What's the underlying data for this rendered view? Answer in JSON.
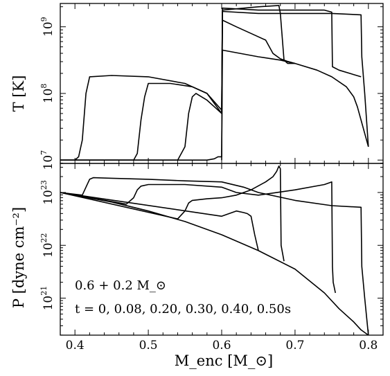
{
  "chart_data": [
    {
      "type": "line",
      "panel": "top",
      "ylabel": "T [K]",
      "xlabel": "",
      "yscale": "log",
      "xlim": [
        0.38,
        0.82
      ],
      "ylim_log10": [
        6.95,
        9.35
      ],
      "yticks": [
        {
          "base": "10",
          "exp": "7",
          "value": 7
        },
        {
          "base": "10",
          "exp": "8",
          "value": 8
        },
        {
          "base": "10",
          "exp": "9",
          "value": 9
        }
      ],
      "grid": false,
      "series": [
        {
          "x": [
            0.38,
            0.4,
            0.45,
            0.5,
            0.55,
            0.58,
            0.59,
            0.595,
            0.6,
            0.601,
            0.65,
            0.68,
            0.7,
            0.73,
            0.75,
            0.77,
            0.78,
            0.785,
            0.79,
            0.795,
            0.8
          ],
          "y": [
            7.0,
            7.0,
            7.0,
            7.0,
            7.0,
            7.0,
            7.02,
            7.05,
            7.05,
            8.65,
            8.55,
            8.5,
            8.45,
            8.35,
            8.25,
            8.1,
            7.95,
            7.8,
            7.6,
            7.4,
            7.2
          ]
        },
        {
          "x": [
            0.38,
            0.4,
            0.405,
            0.41,
            0.415,
            0.42,
            0.45,
            0.5,
            0.55,
            0.58,
            0.6,
            0.601,
            0.65,
            0.7,
            0.75,
            0.79,
            0.791,
            0.795,
            0.8
          ],
          "y": [
            7.0,
            7.0,
            7.05,
            7.3,
            8.0,
            8.25,
            8.27,
            8.25,
            8.15,
            8.0,
            7.7,
            9.23,
            9.2,
            9.2,
            9.2,
            9.18,
            8.55,
            8.0,
            7.2
          ]
        },
        {
          "x": [
            0.38,
            0.48,
            0.485,
            0.49,
            0.495,
            0.5,
            0.53,
            0.56,
            0.58,
            0.6,
            0.601,
            0.65,
            0.7,
            0.74,
            0.75,
            0.751,
            0.76,
            0.79
          ],
          "y": [
            7.0,
            7.0,
            7.1,
            7.6,
            7.95,
            8.15,
            8.15,
            8.1,
            8.0,
            7.75,
            9.28,
            9.25,
            9.25,
            9.25,
            9.22,
            8.4,
            8.35,
            8.25
          ]
        },
        {
          "x": [
            0.38,
            0.54,
            0.55,
            0.555,
            0.56,
            0.565,
            0.58,
            0.59,
            0.6,
            0.601,
            0.65,
            0.678,
            0.68,
            0.685,
            0.69,
            0.7
          ],
          "y": [
            7.0,
            7.0,
            7.2,
            7.7,
            7.95,
            8.0,
            7.9,
            7.8,
            7.7,
            9.25,
            9.3,
            9.32,
            9.2,
            8.5,
            8.45,
            8.45
          ]
        },
        {
          "x": [
            0.6,
            0.601,
            0.62,
            0.64,
            0.66,
            0.67,
            0.68,
            0.685,
            0.69,
            0.7
          ],
          "y": [
            7.0,
            9.1,
            9.0,
            8.9,
            8.8,
            8.6,
            8.52,
            8.5,
            8.48,
            8.45
          ]
        }
      ]
    },
    {
      "type": "line",
      "panel": "bottom",
      "ylabel": "P [dyne cm⁻²]",
      "xlabel": "M_enc [M_⊙]",
      "yscale": "log",
      "xlim": [
        0.38,
        0.82
      ],
      "ylim_log10": [
        20.3,
        23.55
      ],
      "xticks": [
        0.4,
        0.5,
        0.6,
        0.7,
        0.8
      ],
      "xtick_labels": [
        "0.4",
        "0.5",
        "0.6",
        "0.7",
        "0.8"
      ],
      "yticks": [
        {
          "base": "10",
          "exp": "21",
          "value": 21
        },
        {
          "base": "10",
          "exp": "22",
          "value": 22
        },
        {
          "base": "10",
          "exp": "23",
          "value": 23
        }
      ],
      "grid": false,
      "annotations": [
        "0.6 + 0.2 M_⊙",
        "t = 0, 0.08, 0.20, 0.30, 0.40, 0.50s"
      ],
      "series": [
        {
          "x": [
            0.38,
            0.45,
            0.5,
            0.55,
            0.6,
            0.65,
            0.7,
            0.74,
            0.76,
            0.78,
            0.79,
            0.8
          ],
          "y": [
            23.0,
            22.82,
            22.65,
            22.45,
            22.2,
            21.9,
            21.55,
            21.1,
            20.8,
            20.55,
            20.4,
            20.3
          ]
        },
        {
          "x": [
            0.38,
            0.41,
            0.415,
            0.42,
            0.425,
            0.45,
            0.5,
            0.55,
            0.6,
            0.63,
            0.65,
            0.7,
            0.75,
            0.79,
            0.791,
            0.795,
            0.8
          ],
          "y": [
            23.0,
            22.95,
            23.1,
            23.25,
            23.28,
            23.27,
            23.25,
            23.22,
            23.2,
            23.1,
            23.0,
            22.85,
            22.75,
            22.72,
            21.6,
            21.0,
            20.3
          ]
        },
        {
          "x": [
            0.38,
            0.47,
            0.48,
            0.485,
            0.49,
            0.5,
            0.55,
            0.6,
            0.62,
            0.65,
            0.7,
            0.74,
            0.75,
            0.751,
            0.752,
            0.755
          ],
          "y": [
            23.0,
            22.78,
            22.9,
            23.05,
            23.12,
            23.15,
            23.15,
            23.1,
            23.0,
            22.95,
            23.05,
            23.15,
            23.2,
            21.6,
            21.3,
            21.1
          ]
        },
        {
          "x": [
            0.38,
            0.54,
            0.55,
            0.555,
            0.56,
            0.58,
            0.6,
            0.62,
            0.64,
            0.66,
            0.67,
            0.675,
            0.678,
            0.68,
            0.681,
            0.685
          ],
          "y": [
            23.0,
            22.5,
            22.65,
            22.8,
            22.85,
            22.88,
            22.9,
            22.95,
            23.05,
            23.2,
            23.3,
            23.4,
            23.5,
            23.45,
            22.0,
            21.7
          ]
        },
        {
          "x": [
            0.38,
            0.6,
            0.61,
            0.62,
            0.63,
            0.635,
            0.64,
            0.645,
            0.65
          ],
          "y": [
            23.0,
            22.55,
            22.6,
            22.65,
            22.62,
            22.6,
            22.55,
            22.2,
            21.9
          ]
        }
      ]
    }
  ]
}
